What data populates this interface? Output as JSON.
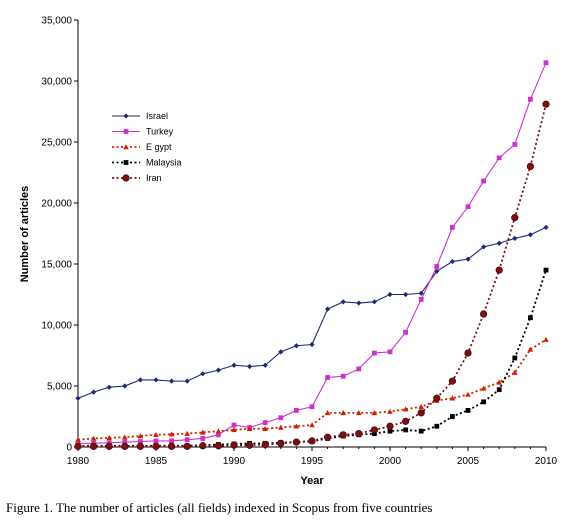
{
  "caption": "Figure 1. The number of articles (all fields) indexed in Scopus from five countries",
  "chart_data": {
    "type": "line",
    "title": "",
    "xlabel": "Year",
    "ylabel": "Number of articles",
    "xlim": [
      1980,
      2010
    ],
    "ylim": [
      0,
      35000
    ],
    "x_ticks": [
      "1980",
      "1985",
      "1990",
      "1995",
      "2000",
      "2005",
      "2010"
    ],
    "y_ticks": [
      "0",
      "5,000",
      "10,000",
      "15,000",
      "20,000",
      "25,000",
      "30,000",
      "35,000"
    ],
    "grid": false,
    "legend_position": "upper-left",
    "x": [
      1980,
      1981,
      1982,
      1983,
      1984,
      1985,
      1986,
      1987,
      1988,
      1989,
      1990,
      1991,
      1992,
      1993,
      1994,
      1995,
      1996,
      1997,
      1998,
      1999,
      2000,
      2001,
      2002,
      2003,
      2004,
      2005,
      2006,
      2007,
      2008,
      2009,
      2010
    ],
    "series": [
      {
        "name": "Israel",
        "color": "#1f2a6e",
        "marker": "diamond",
        "line": "solid",
        "values": [
          4000,
          4500,
          4900,
          5000,
          5500,
          5500,
          5400,
          5400,
          6000,
          6300,
          6700,
          6600,
          6700,
          7800,
          8300,
          8400,
          11300,
          11900,
          11800,
          11900,
          12500,
          12500,
          12600,
          14400,
          15200,
          15400,
          16400,
          16700,
          17100,
          17400,
          18000
        ]
      },
      {
        "name": "Turkey",
        "color": "#cc33cc",
        "marker": "square",
        "line": "solid",
        "values": [
          300,
          300,
          350,
          400,
          450,
          500,
          500,
          600,
          700,
          1000,
          1800,
          1600,
          2000,
          2400,
          3000,
          3300,
          5700,
          5800,
          6400,
          7700,
          7800,
          9400,
          12100,
          14800,
          18000,
          19700,
          21800,
          23700,
          24800,
          28500,
          31500
        ]
      },
      {
        "name": "E gypt",
        "color": "#cc2200",
        "marker": "triangle",
        "line": "dotted",
        "values": [
          600,
          700,
          750,
          800,
          900,
          1000,
          1050,
          1100,
          1200,
          1300,
          1400,
          1500,
          1500,
          1600,
          1700,
          1800,
          2800,
          2800,
          2800,
          2800,
          2900,
          3100,
          3300,
          3800,
          4000,
          4300,
          4800,
          5300,
          6100,
          8000,
          8800
        ]
      },
      {
        "name": "Malaysia",
        "color": "#000000",
        "marker": "square",
        "line": "dotted",
        "values": [
          100,
          100,
          100,
          100,
          100,
          100,
          100,
          100,
          150,
          200,
          250,
          300,
          300,
          350,
          400,
          450,
          700,
          900,
          1000,
          1100,
          1300,
          1400,
          1300,
          1700,
          2500,
          3000,
          3700,
          4700,
          7300,
          10600,
          14500
        ]
      },
      {
        "name": "Iran",
        "color": "#7a1010",
        "marker": "circle",
        "line": "dotted",
        "values": [
          50,
          50,
          50,
          50,
          50,
          50,
          50,
          50,
          100,
          100,
          150,
          150,
          200,
          300,
          400,
          500,
          800,
          1000,
          1100,
          1400,
          1700,
          2100,
          2800,
          4000,
          5400,
          7700,
          10900,
          14500,
          18800,
          23000,
          28100
        ]
      }
    ]
  }
}
